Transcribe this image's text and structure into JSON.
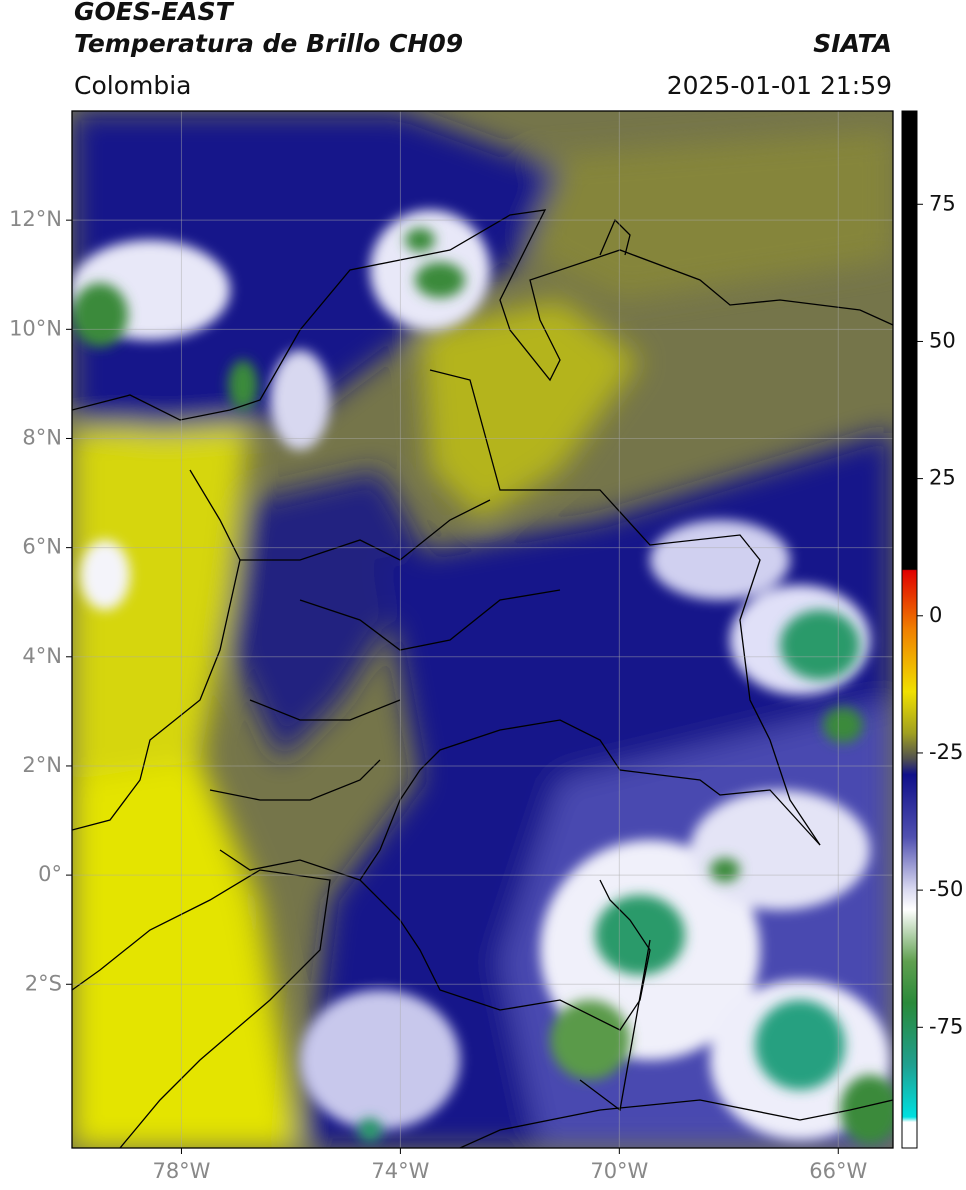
{
  "header": {
    "source": "GOES-EAST",
    "title": "Temperatura de Brillo CH09",
    "agency": "SIATA",
    "region": "Colombia",
    "datetime": "2025-01-01 21:59"
  },
  "map": {
    "lonlim": [
      -80,
      -65
    ],
    "latlim": [
      -5,
      14
    ],
    "lon_ticks": [
      {
        "value": -78,
        "label": "78°W"
      },
      {
        "value": -74,
        "label": "74°W"
      },
      {
        "value": -70,
        "label": "70°W"
      },
      {
        "value": -66,
        "label": "66°W"
      }
    ],
    "lat_ticks": [
      {
        "value": 12,
        "label": "12°N"
      },
      {
        "value": 10,
        "label": "10°N"
      },
      {
        "value": 8,
        "label": "8°N"
      },
      {
        "value": 6,
        "label": "6°N"
      },
      {
        "value": 4,
        "label": "4°N"
      },
      {
        "value": 2,
        "label": "2°N"
      },
      {
        "value": 0,
        "label": "0°"
      },
      {
        "value": -2,
        "label": "2°S"
      }
    ],
    "grid": true
  },
  "colorbar": {
    "lim": [
      -97,
      92
    ],
    "ticks": [
      75,
      50,
      25,
      0,
      -25,
      -50,
      -75
    ]
  }
}
